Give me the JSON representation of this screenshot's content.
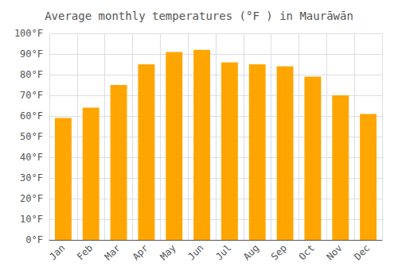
{
  "chart_data": {
    "type": "bar",
    "title": "Average monthly temperatures (°F ) in Maurāwān",
    "categories": [
      "Jan",
      "Feb",
      "Mar",
      "Apr",
      "May",
      "Jun",
      "Jul",
      "Aug",
      "Sep",
      "Oct",
      "Nov",
      "Dec"
    ],
    "values": [
      59,
      64,
      75,
      85,
      91,
      92,
      86,
      85,
      84,
      79,
      70,
      61
    ],
    "color": "#FFA500",
    "ylim": [
      0,
      100
    ],
    "yticks": [
      {
        "value": 0,
        "label": "0°F"
      },
      {
        "value": 10,
        "label": "10°F"
      },
      {
        "value": 20,
        "label": "20°F"
      },
      {
        "value": 30,
        "label": "30°F"
      },
      {
        "value": 40,
        "label": "40°F"
      },
      {
        "value": 50,
        "label": "50°F"
      },
      {
        "value": 60,
        "label": "60°F"
      },
      {
        "value": 70,
        "label": "70°F"
      },
      {
        "value": 80,
        "label": "80°F"
      },
      {
        "value": 90,
        "label": "90°F"
      },
      {
        "value": 100,
        "label": "100°F"
      }
    ],
    "grid": true
  }
}
